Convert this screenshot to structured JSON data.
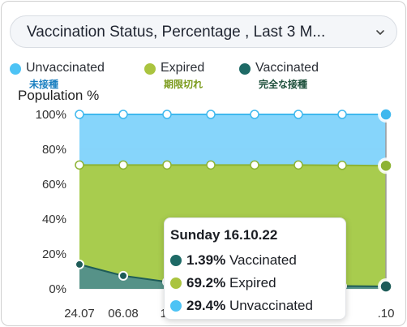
{
  "header": {
    "dropdown_label": "Vaccination Status, Percentage , Last 3 M..."
  },
  "legend": [
    {
      "label": "Unvaccinated",
      "sub": "未接種",
      "color": "#4dc3f5",
      "sub_color": "#1a7fc0"
    },
    {
      "label": "Expired",
      "sub": "期限切れ",
      "color": "#aac43f",
      "sub_color": "#7a9a1a"
    },
    {
      "label": "Vaccinated",
      "sub": "完全な接種",
      "color": "#1e6a66",
      "sub_color": "#1c4f3a"
    }
  ],
  "colors": {
    "unvaccinated": "#7fd3fb",
    "unvaccinated_line": "#3fb8ee",
    "expired": "#a3c945",
    "expired_line": "#8db334",
    "vaccinated": "#4d8c82",
    "vaccinated_line": "#1e5c58",
    "cursor": "#9a9a9a"
  },
  "chart_data": {
    "type": "area",
    "stacked": true,
    "ylabel": "Population %",
    "ylim": [
      0,
      100
    ],
    "yticks": [
      "0%",
      "20%",
      "40%",
      "60%",
      "80%",
      "100%"
    ],
    "x_tick_labels": [
      "24.07",
      "06.08",
      "19",
      "",
      "",
      "",
      "",
      ".10"
    ],
    "series": [
      {
        "name": "Vaccinated",
        "values": [
          14,
          7.5,
          4,
          2.5,
          2,
          1.8,
          1.6,
          1.39
        ]
      },
      {
        "name": "Expired",
        "values": [
          57,
          63.5,
          67,
          68.5,
          69,
          69.2,
          69.2,
          69.2
        ]
      },
      {
        "name": "Unvaccinated",
        "values": [
          29,
          29,
          29,
          29,
          29,
          29,
          29.2,
          29.4
        ]
      }
    ],
    "grid": true
  },
  "tooltip": {
    "title": "Sunday 16.10.22",
    "rows": [
      {
        "value": "1.39%",
        "label": "Vaccinated",
        "color": "#1e6a66"
      },
      {
        "value": "69.2%",
        "label": "Expired",
        "color": "#aac43f"
      },
      {
        "value": "29.4%",
        "label": "Unvaccinated",
        "color": "#4dc3f5"
      }
    ]
  }
}
